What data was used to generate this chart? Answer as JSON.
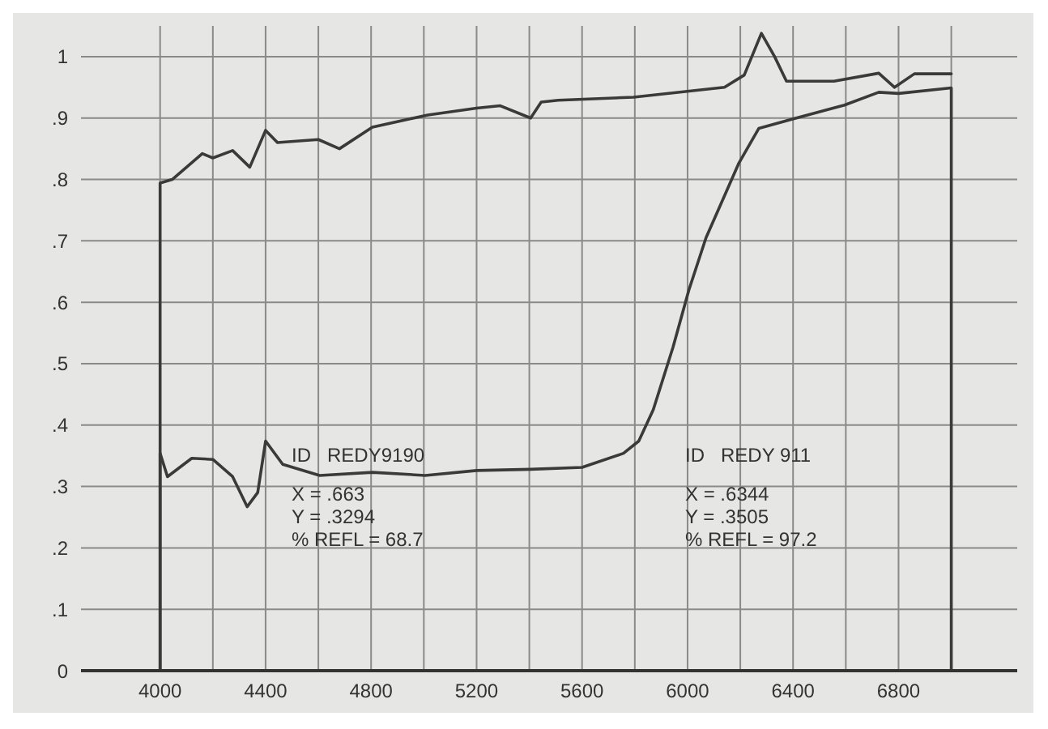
{
  "chart_data": {
    "type": "line",
    "xlim": [
      3700,
      7250
    ],
    "ylim": [
      0,
      1.05
    ],
    "xticks": [
      4000,
      {
        "value": 4200,
        "label": null
      },
      4400,
      {
        "value": 4600,
        "label": null
      },
      4800,
      {
        "value": 5000,
        "label": null
      },
      5200,
      {
        "value": 5400,
        "label": null
      },
      5600,
      {
        "value": 5800,
        "label": null
      },
      6000,
      {
        "value": 6200,
        "label": null
      },
      6400,
      {
        "value": 6600,
        "label": null
      },
      6800,
      {
        "value": 7000,
        "label": null
      }
    ],
    "yticks": [
      0,
      {
        "value": 0.1,
        "label": ".1"
      },
      {
        "value": 0.2,
        "label": ".2"
      },
      {
        "value": 0.3,
        "label": ".3"
      },
      {
        "value": 0.4,
        "label": ".4"
      },
      {
        "value": 0.5,
        "label": ".5"
      },
      {
        "value": 0.6,
        "label": ".6"
      },
      {
        "value": 0.7,
        "label": ".7"
      },
      {
        "value": 0.8,
        "label": ".8"
      },
      {
        "value": 0.9,
        "label": ".9"
      },
      1
    ],
    "grid": true,
    "line_style": "solid",
    "series": [
      {
        "color": "#3a3a3a",
        "x": [
          4000,
          4000,
          4046,
          4160,
          4200,
          4275,
          4340,
          4400,
          4445,
          4600,
          4680,
          4805,
          5015,
          5200,
          5290,
          5405,
          5445,
          5510,
          5795,
          6140,
          6215,
          6280,
          6330,
          6375,
          6555,
          6725,
          6785,
          6860,
          7000
        ],
        "values": [
          0,
          0.794,
          0.8,
          0.842,
          0.835,
          0.847,
          0.82,
          0.88,
          0.86,
          0.865,
          0.85,
          0.885,
          0.905,
          0.916,
          0.92,
          0.9,
          0.926,
          0.929,
          0.934,
          0.95,
          0.97,
          1.038,
          1.0,
          0.96,
          0.96,
          0.973,
          0.95,
          0.972,
          0.972
        ]
      },
      {
        "color": "#3a3a3a",
        "x": [
          4000,
          4000,
          4028,
          4120,
          4200,
          4275,
          4330,
          4370,
          4400,
          4465,
          4605,
          4805,
          5005,
          5200,
          5405,
          5600,
          5757,
          5815,
          5870,
          5945,
          6005,
          6070,
          6195,
          6270,
          6395,
          6595,
          6725,
          6800,
          7000,
          7000
        ],
        "values": [
          0,
          0.354,
          0.316,
          0.346,
          0.344,
          0.316,
          0.267,
          0.29,
          0.374,
          0.336,
          0.318,
          0.323,
          0.318,
          0.326,
          0.328,
          0.331,
          0.354,
          0.374,
          0.425,
          0.527,
          0.62,
          0.705,
          0.827,
          0.883,
          0.898,
          0.921,
          0.942,
          0.94,
          0.949,
          0
        ]
      }
    ],
    "annotations": [
      "ID   REDY9190",
      "X = .663",
      "Y = .3294",
      "% REFL = 68.7",
      "ID   REDY 911",
      "X = .6344",
      "Y = .3505",
      "% REFL = 97.2"
    ]
  }
}
